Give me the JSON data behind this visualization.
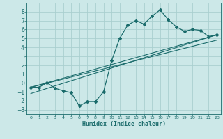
{
  "xlabel": "Humidex (Indice chaleur)",
  "bg_color": "#cce8e8",
  "grid_color": "#aacfcf",
  "line_color": "#1a6b6b",
  "xlim": [
    -0.5,
    23.5
  ],
  "ylim": [
    -3.5,
    9.0
  ],
  "xticks": [
    0,
    1,
    2,
    3,
    4,
    5,
    6,
    7,
    8,
    9,
    10,
    11,
    12,
    13,
    14,
    15,
    16,
    17,
    18,
    19,
    20,
    21,
    22,
    23
  ],
  "yticks": [
    -3,
    -2,
    -1,
    0,
    1,
    2,
    3,
    4,
    5,
    6,
    7,
    8
  ],
  "curve1_x": [
    0,
    1,
    2,
    3,
    4,
    5,
    6,
    7,
    8,
    9,
    10,
    11,
    12,
    13,
    14,
    15,
    16,
    17,
    18,
    19,
    20,
    21,
    22,
    23
  ],
  "curve1_y": [
    -0.5,
    -0.5,
    0.0,
    -0.6,
    -0.9,
    -1.1,
    -2.6,
    -2.1,
    -2.1,
    -1.0,
    2.5,
    5.0,
    6.5,
    7.0,
    6.6,
    7.5,
    8.2,
    7.1,
    6.3,
    5.8,
    6.0,
    5.9,
    5.2,
    5.4
  ],
  "line2_x": [
    0,
    23
  ],
  "line2_y": [
    -0.5,
    5.4
  ],
  "line3_x": [
    0,
    23
  ],
  "line3_y": [
    -0.5,
    4.8
  ],
  "line4_x": [
    0,
    23
  ],
  "line4_y": [
    -1.2,
    5.4
  ]
}
